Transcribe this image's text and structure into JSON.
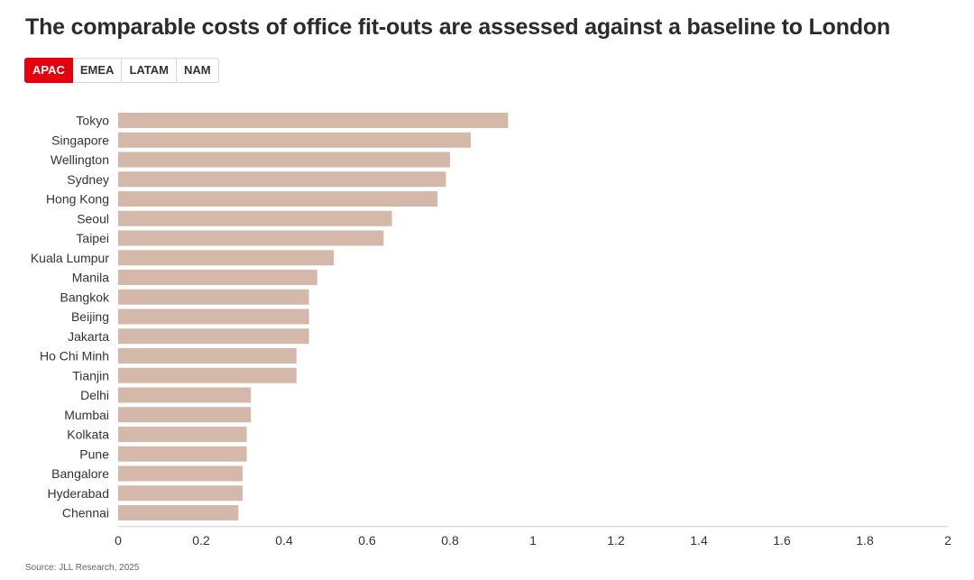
{
  "title": "The comparable costs of office fit-outs are assessed against a baseline to London",
  "tabs": [
    {
      "label": "APAC",
      "active": true
    },
    {
      "label": "EMEA",
      "active": false
    },
    {
      "label": "LATAM",
      "active": false
    },
    {
      "label": "NAM",
      "active": false
    }
  ],
  "colors": {
    "bar": "#d4b9aa",
    "accent": "#e3000f",
    "axis": "#cccccc"
  },
  "source": "Source: JLL Research, 2025",
  "chart_data": {
    "type": "bar",
    "orientation": "horizontal",
    "categories": [
      "Tokyo",
      "Singapore",
      "Wellington",
      "Sydney",
      "Hong Kong",
      "Seoul",
      "Taipei",
      "Kuala Lumpur",
      "Manila",
      "Bangkok",
      "Beijing",
      "Jakarta",
      "Ho Chi Minh",
      "Tianjin",
      "Delhi",
      "Mumbai",
      "Kolkata",
      "Pune",
      "Bangalore",
      "Hyderabad",
      "Chennai"
    ],
    "values": [
      0.94,
      0.85,
      0.8,
      0.79,
      0.77,
      0.66,
      0.64,
      0.52,
      0.48,
      0.46,
      0.46,
      0.46,
      0.43,
      0.43,
      0.32,
      0.32,
      0.31,
      0.31,
      0.3,
      0.3,
      0.29
    ],
    "xlim": [
      0,
      2
    ],
    "xticks": [
      "0",
      "0.2",
      "0.4",
      "0.6",
      "0.8",
      "1",
      "1.2",
      "1.4",
      "1.6",
      "1.8",
      "2"
    ],
    "grid": false,
    "legend": "none"
  }
}
